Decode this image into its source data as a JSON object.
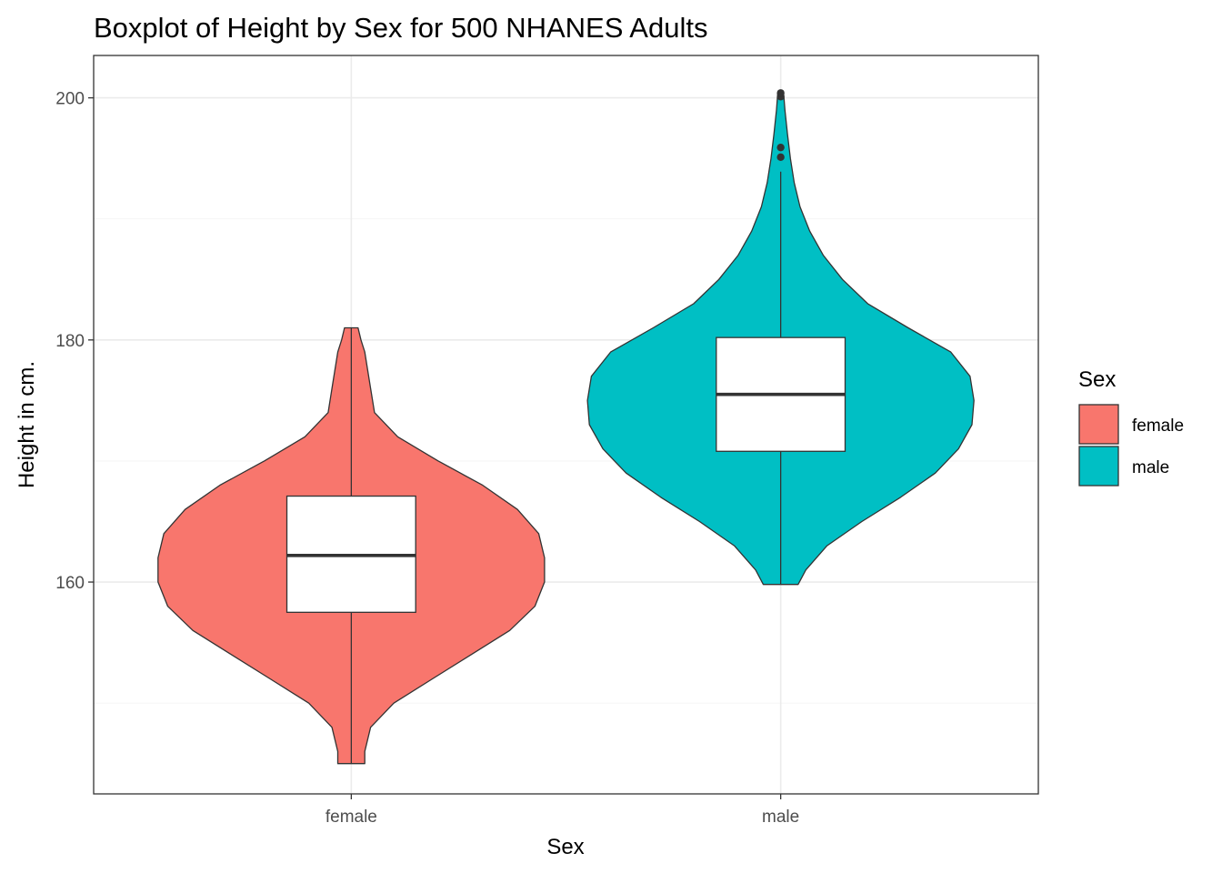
{
  "chart_data": {
    "type": "violin-boxplot",
    "title": "Boxplot of Height by Sex for 500 NHANES Adults",
    "xlabel": "Sex",
    "ylabel": "Height in cm.",
    "categories": [
      "female",
      "male"
    ],
    "ylim": [
      142.5,
      203.5
    ],
    "yticks": [
      160,
      180,
      200
    ],
    "grid": true,
    "legend": {
      "title": "Sex",
      "position": "right",
      "entries": [
        {
          "label": "female",
          "color": "#F8766D"
        },
        {
          "label": "male",
          "color": "#00BFC4"
        }
      ]
    },
    "groups": [
      {
        "name": "female",
        "color": "#F8766D",
        "box": {
          "q1": 157.5,
          "median": 162.2,
          "q3": 167.1
        },
        "whiskers": [
          145,
          181
        ],
        "outliers": [],
        "violin": {
          "y": [
            145,
            146,
            148,
            150,
            152,
            154,
            156,
            158,
            160,
            162,
            164,
            166,
            168,
            170,
            172,
            174,
            176,
            177.5,
            179,
            180,
            181
          ],
          "width": [
            0.07,
            0.07,
            0.1,
            0.22,
            0.42,
            0.62,
            0.82,
            0.95,
            1.0,
            1.0,
            0.97,
            0.86,
            0.68,
            0.45,
            0.24,
            0.12,
            0.1,
            0.085,
            0.07,
            0.05,
            0.035
          ]
        }
      },
      {
        "name": "male",
        "color": "#00BFC4",
        "box": {
          "q1": 170.8,
          "median": 175.5,
          "q3": 180.2
        },
        "whiskers": [
          159.8,
          193.9
        ],
        "outliers": [
          195.1,
          195.9,
          200.1,
          200.4
        ],
        "violin": {
          "y": [
            159.8,
            161,
            163,
            165,
            167,
            169,
            171,
            173,
            175,
            177,
            179,
            181,
            183,
            185,
            187,
            189,
            191,
            193,
            195,
            197,
            199,
            200.4
          ],
          "width": [
            0.09,
            0.13,
            0.24,
            0.42,
            0.62,
            0.8,
            0.92,
            0.99,
            1.0,
            0.98,
            0.88,
            0.66,
            0.45,
            0.32,
            0.22,
            0.15,
            0.1,
            0.07,
            0.05,
            0.035,
            0.022,
            0.015
          ]
        }
      }
    ]
  }
}
